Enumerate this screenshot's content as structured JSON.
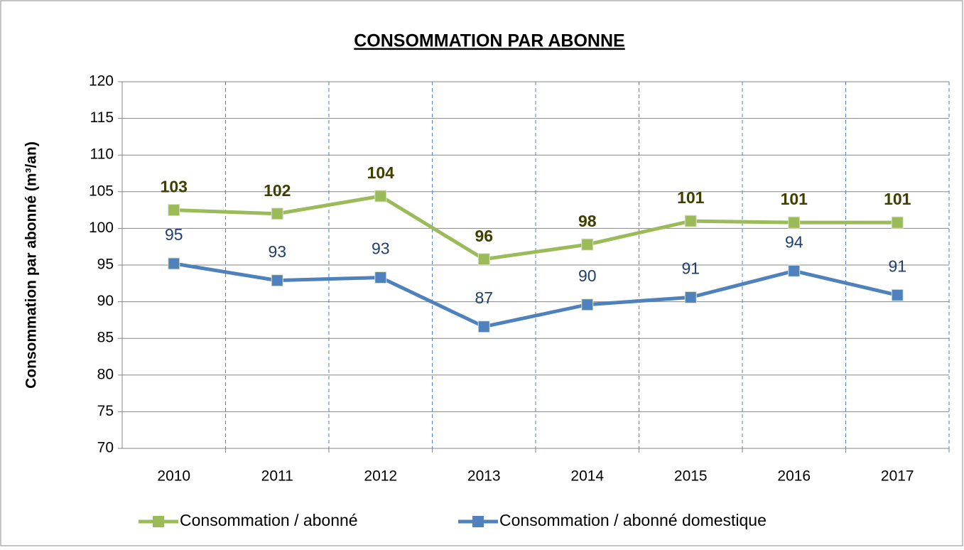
{
  "chart_data": {
    "type": "line",
    "title": "CONSOMMATION PAR ABONNE",
    "y_label": "Consommation par  abonné (m³/an)",
    "categories": [
      "2010",
      "2011",
      "2012",
      "2013",
      "2014",
      "2015",
      "2016",
      "2017"
    ],
    "series": [
      {
        "name": "Consommation / abonné",
        "color": "#9bbb59",
        "values": [
          102.5,
          102,
          104.4,
          95.8,
          97.8,
          101,
          100.8,
          100.8
        ],
        "value_labels": [
          "103",
          "102",
          "104",
          "96",
          "98",
          "101",
          "101",
          "101"
        ]
      },
      {
        "name": "Consommation / abonné domestique",
        "color": "#4f81bd",
        "values": [
          95.2,
          92.9,
          93.3,
          86.6,
          89.6,
          90.6,
          94.2,
          90.9
        ],
        "value_labels": [
          "95",
          "93",
          "93",
          "87",
          "90",
          "91",
          "94",
          "91"
        ]
      }
    ],
    "ylim": [
      70,
      120
    ],
    "yticks": [
      70,
      75,
      80,
      85,
      90,
      95,
      100,
      105,
      110,
      115,
      120
    ],
    "grid": true,
    "legend": "bottom"
  }
}
